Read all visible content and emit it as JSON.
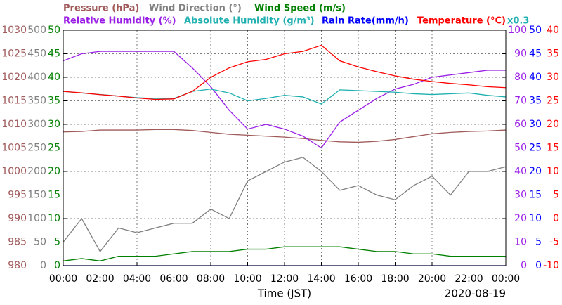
{
  "chart_data": {
    "type": "line",
    "x": [
      0,
      1,
      2,
      3,
      4,
      5,
      6,
      7,
      8,
      9,
      10,
      11,
      12,
      13,
      14,
      15,
      16,
      17,
      18,
      19,
      20,
      21,
      22,
      23,
      24
    ],
    "xlim": [
      0,
      24
    ],
    "xticks": [
      {
        "value": 0,
        "label": "00:00"
      },
      {
        "value": 2,
        "label": "02:00"
      },
      {
        "value": 4,
        "label": "04:00"
      },
      {
        "value": 6,
        "label": "06:00"
      },
      {
        "value": 8,
        "label": "08:00"
      },
      {
        "value": 10,
        "label": "10:00"
      },
      {
        "value": 12,
        "label": "12:00"
      },
      {
        "value": 14,
        "label": "14:00"
      },
      {
        "value": 16,
        "label": "16:00"
      },
      {
        "value": 18,
        "label": "18:00"
      },
      {
        "value": 20,
        "label": "20:00"
      },
      {
        "value": 22,
        "label": "22:00"
      },
      {
        "value": 24,
        "label": "00:00"
      }
    ],
    "xlabel": "Time (JST)",
    "date": "2020-08-19",
    "annotation": "x0.3",
    "grid": true,
    "axes": [
      {
        "side": "left",
        "lim": [
          980,
          1030
        ],
        "ticks": [
          980,
          985,
          990,
          995,
          1000,
          1005,
          1010,
          1015,
          1020,
          1025,
          1030
        ]
      },
      {
        "side": "left",
        "lim": [
          0,
          500
        ],
        "ticks": [
          0,
          50,
          100,
          150,
          200,
          250,
          300,
          350,
          400,
          450,
          500
        ]
      },
      {
        "side": "left",
        "lim": [
          0,
          50
        ],
        "ticks": [
          0,
          5,
          10,
          15,
          20,
          25,
          30,
          35,
          40,
          45,
          50
        ]
      },
      {
        "side": "right",
        "lim": [
          0,
          100
        ],
        "ticks": [
          0,
          10,
          20,
          30,
          40,
          50,
          60,
          70,
          80,
          90,
          100
        ]
      },
      {
        "side": "right",
        "lim": [
          0,
          50
        ],
        "ticks": [
          0,
          5,
          10,
          15,
          20,
          25,
          30,
          35,
          40,
          45,
          50
        ]
      },
      {
        "side": "right",
        "lim": [
          -10,
          40
        ],
        "ticks": [
          -10,
          -5,
          0,
          5,
          10,
          15,
          20,
          25,
          30,
          35,
          40
        ]
      },
      {
        "lim": [
          0,
          30
        ]
      }
    ],
    "series": [
      {
        "name": "Pressure (hPa)",
        "color": "#a05a5a",
        "axis": 0,
        "values": [
          1008.4,
          1008.5,
          1008.8,
          1008.8,
          1008.8,
          1008.9,
          1008.9,
          1008.7,
          1008.3,
          1007.9,
          1007.7,
          1007.5,
          1007.3,
          1007.0,
          1006.6,
          1006.3,
          1006.2,
          1006.4,
          1006.8,
          1007.4,
          1008.0,
          1008.3,
          1008.5,
          1008.6,
          1008.8
        ]
      },
      {
        "name": "Wind Direction (°)",
        "color": "#808080",
        "axis": 1,
        "values": [
          50,
          100,
          30,
          80,
          70,
          80,
          90,
          90,
          120,
          100,
          180,
          200,
          220,
          230,
          200,
          160,
          170,
          150,
          140,
          170,
          190,
          150,
          200,
          200,
          210
        ]
      },
      {
        "name": "Wind Speed (m/s)",
        "color": "#008000",
        "axis": 2,
        "values": [
          1,
          1.5,
          1,
          2,
          2,
          2,
          2.5,
          3,
          3,
          3,
          3.5,
          3.5,
          4,
          4,
          4,
          4,
          3.5,
          3,
          3,
          2.5,
          2.5,
          2,
          2,
          2,
          2
        ]
      },
      {
        "name": "Relative Humidity (%)",
        "color": "#9a1ee6",
        "axis": 3,
        "values": [
          87,
          90,
          91,
          91,
          91,
          91,
          91,
          84,
          76,
          66,
          58,
          60,
          58,
          55,
          50,
          61,
          66,
          71,
          75,
          77,
          80,
          81,
          82,
          83,
          83
        ]
      },
      {
        "name": "Absolute Humidity (g/m³)",
        "color": "#20b0b0",
        "axis": 6,
        "values": [
          22.2,
          22.0,
          21.8,
          21.6,
          21.4,
          21.3,
          21.3,
          22.2,
          22.5,
          22.0,
          21.0,
          21.3,
          21.7,
          21.5,
          20.6,
          22.4,
          22.3,
          22.2,
          22.1,
          21.9,
          21.8,
          21.9,
          22.0,
          21.7,
          21.5
        ]
      },
      {
        "name": "Rain Rate(mm/h)",
        "color": "#0000ff",
        "axis": 4,
        "values": [
          0,
          0,
          0,
          0,
          0,
          0,
          0,
          0,
          0,
          0,
          0,
          0,
          0,
          0,
          0,
          0,
          0,
          0,
          0,
          0,
          0,
          0,
          0,
          0,
          0
        ]
      },
      {
        "name": "Temperature (°C)",
        "color": "#ff0000",
        "axis": 5,
        "values": [
          27.0,
          26.7,
          26.3,
          26.0,
          25.6,
          25.3,
          25.4,
          27.0,
          30.0,
          32.0,
          33.3,
          33.8,
          35.0,
          35.5,
          36.8,
          33.5,
          32.2,
          31.2,
          30.3,
          29.6,
          29.1,
          28.7,
          28.4,
          28.0,
          27.8
        ]
      }
    ]
  }
}
